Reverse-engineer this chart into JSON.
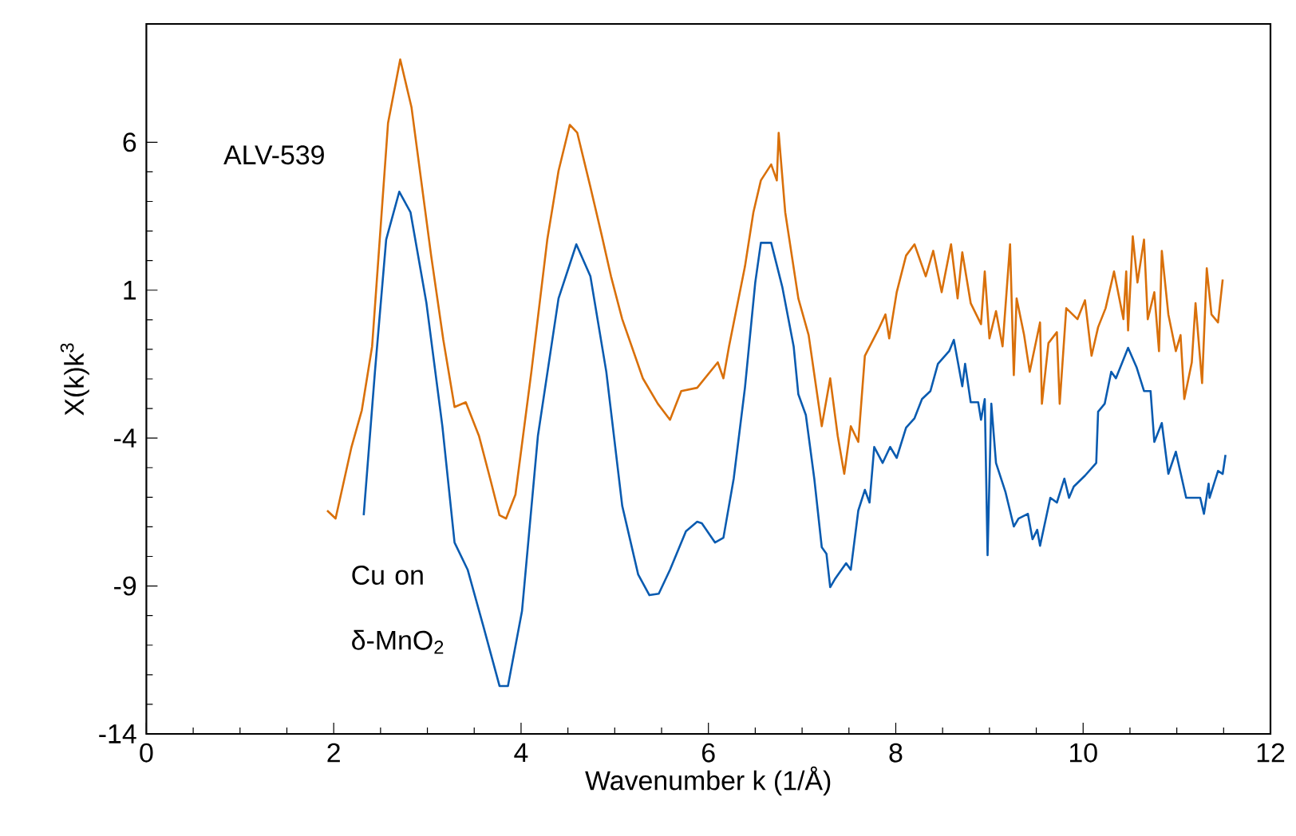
{
  "chart_data": {
    "type": "line",
    "xlabel": "Wavenumber k (1/Å)",
    "ylabel": "X(k)k$^{3}$",
    "xlim": [
      0,
      12
    ],
    "ylim": [
      -14,
      10
    ],
    "xticks": [
      0,
      2,
      4,
      6,
      8,
      10,
      12
    ],
    "yticks": [
      -14,
      -9,
      -4,
      1,
      6
    ],
    "grid": false,
    "legend": false,
    "marker": "none",
    "line_style": "solid",
    "series": [
      {
        "name": "ALV-539",
        "color": "#d9700a",
        "x": [
          1.93,
          2.02,
          2.19,
          2.3,
          2.41,
          2.58,
          2.71,
          2.83,
          3.04,
          3.17,
          3.29,
          3.41,
          3.55,
          3.67,
          3.77,
          3.84,
          3.94,
          4.11,
          4.28,
          4.4,
          4.52,
          4.6,
          4.74,
          4.86,
          4.96,
          5.08,
          5.3,
          5.46,
          5.59,
          5.71,
          5.88,
          6.1,
          6.16,
          6.22,
          6.39,
          6.48,
          6.56,
          6.67,
          6.73,
          6.75,
          6.82,
          6.96,
          7.07,
          7.21,
          7.3,
          7.38,
          7.45,
          7.52,
          7.6,
          7.67,
          7.81,
          7.89,
          7.93,
          8.01,
          8.11,
          8.2,
          8.32,
          8.4,
          8.49,
          8.59,
          8.66,
          8.71,
          8.8,
          8.91,
          8.95,
          9.0,
          9.07,
          9.14,
          9.22,
          9.26,
          9.29,
          9.37,
          9.43,
          9.54,
          9.56,
          9.63,
          9.72,
          9.75,
          9.82,
          9.94,
          10.02,
          10.09,
          10.16,
          10.24,
          10.33,
          10.43,
          10.46,
          10.48,
          10.53,
          10.58,
          10.65,
          10.69,
          10.76,
          10.81,
          10.84,
          10.91,
          10.99,
          11.04,
          11.08,
          11.16,
          11.2,
          11.27,
          11.32,
          11.37,
          11.44,
          11.49
        ],
        "values": [
          -6.45,
          -6.72,
          -4.3,
          -3.06,
          -0.9,
          6.65,
          8.8,
          7.19,
          2.17,
          -0.68,
          -2.95,
          -2.79,
          -3.92,
          -5.37,
          -6.61,
          -6.72,
          -5.91,
          -1.76,
          2.71,
          5.03,
          6.59,
          6.32,
          4.49,
          2.87,
          1.47,
          0.02,
          -1.98,
          -2.84,
          -3.38,
          -2.41,
          -2.3,
          -1.44,
          -1.98,
          -0.9,
          1.8,
          3.63,
          4.71,
          5.25,
          4.71,
          6.32,
          3.63,
          0.72,
          -0.52,
          -3.6,
          -1.98,
          -3.92,
          -5.21,
          -3.6,
          -4.13,
          -1.22,
          -0.36,
          0.18,
          -0.63,
          0.93,
          2.17,
          2.55,
          1.47,
          2.33,
          0.93,
          2.55,
          0.72,
          2.28,
          0.56,
          -0.15,
          1.63,
          -0.63,
          0.29,
          -0.9,
          2.55,
          -1.87,
          0.72,
          -0.52,
          -1.76,
          -0.09,
          -2.84,
          -0.79,
          -0.42,
          -2.84,
          0.39,
          0.02,
          0.66,
          -1.22,
          -0.25,
          0.39,
          1.63,
          0.02,
          1.63,
          -0.36,
          2.82,
          1.26,
          2.71,
          0.02,
          0.93,
          -1.06,
          2.33,
          0.18,
          -1.06,
          -0.52,
          -2.68,
          -1.44,
          0.56,
          -2.14,
          1.74,
          0.18,
          -0.09,
          1.36
        ]
      },
      {
        "name": "Cu on δ-MnO$_{2}$",
        "color": "#0a5bb0",
        "x": [
          2.32,
          2.44,
          2.56,
          2.7,
          2.82,
          2.99,
          3.16,
          3.29,
          3.43,
          3.6,
          3.77,
          3.86,
          4.01,
          4.18,
          4.4,
          4.59,
          4.74,
          4.91,
          5.08,
          5.25,
          5.37,
          5.47,
          5.59,
          5.76,
          5.88,
          5.93,
          6.07,
          6.16,
          6.27,
          6.39,
          6.5,
          6.56,
          6.67,
          6.79,
          6.91,
          6.96,
          7.04,
          7.13,
          7.21,
          7.26,
          7.3,
          7.35,
          7.47,
          7.52,
          7.6,
          7.67,
          7.72,
          7.77,
          7.86,
          7.94,
          8.01,
          8.11,
          8.2,
          8.28,
          8.37,
          8.45,
          8.57,
          8.62,
          8.71,
          8.74,
          8.8,
          8.88,
          8.91,
          8.95,
          8.98,
          9.02,
          9.07,
          9.17,
          9.26,
          9.31,
          9.41,
          9.46,
          9.51,
          9.54,
          9.65,
          9.72,
          9.8,
          9.85,
          9.9,
          10.02,
          10.14,
          10.16,
          10.23,
          10.3,
          10.35,
          10.48,
          10.57,
          10.65,
          10.72,
          10.76,
          10.84,
          10.91,
          10.99,
          11.1,
          11.25,
          11.29,
          11.34,
          11.35,
          11.44,
          11.49,
          11.52
        ],
        "values": [
          -6.61,
          -1.76,
          2.71,
          4.33,
          3.63,
          0.56,
          -3.6,
          -7.53,
          -8.45,
          -10.39,
          -12.38,
          -12.38,
          -9.85,
          -3.92,
          0.72,
          2.55,
          1.47,
          -1.76,
          -6.29,
          -8.61,
          -9.31,
          -9.26,
          -8.45,
          -7.15,
          -6.83,
          -6.88,
          -7.53,
          -7.37,
          -5.37,
          -2.3,
          1.26,
          2.6,
          2.6,
          1.09,
          -0.9,
          -2.52,
          -3.22,
          -5.37,
          -7.69,
          -7.91,
          -9.04,
          -8.77,
          -8.23,
          -8.45,
          -6.45,
          -5.75,
          -6.18,
          -4.3,
          -4.84,
          -4.3,
          -4.67,
          -3.65,
          -3.33,
          -2.68,
          -2.41,
          -1.49,
          -1.06,
          -0.68,
          -2.25,
          -1.49,
          -2.79,
          -2.79,
          -3.38,
          -2.68,
          -7.96,
          -2.84,
          -4.84,
          -5.81,
          -6.99,
          -6.72,
          -6.56,
          -7.42,
          -7.1,
          -7.64,
          -6.02,
          -6.18,
          -5.37,
          -6.02,
          -5.64,
          -5.27,
          -4.84,
          -3.11,
          -2.84,
          -1.76,
          -1.98,
          -0.95,
          -1.6,
          -2.41,
          -2.41,
          -4.13,
          -3.49,
          -5.21,
          -4.46,
          -6.02,
          -6.02,
          -6.56,
          -5.54,
          -6.02,
          -5.11,
          -5.21,
          -4.57
        ]
      }
    ]
  }
}
